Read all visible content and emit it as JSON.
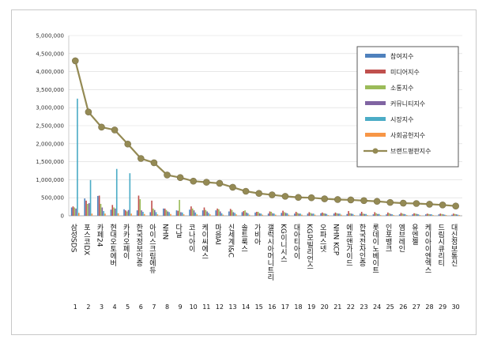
{
  "chart_data": {
    "type": "bar",
    "title": "",
    "xlabel": "",
    "ylabel": "",
    "ylim": [
      0,
      5000000
    ],
    "y_ticks": [
      "0",
      "500,000",
      "1,000,000",
      "1,500,000",
      "2,000,000",
      "2,500,000",
      "3,000,000",
      "3,500,000",
      "4,000,000",
      "4,500,000",
      "5,000,000"
    ],
    "grid": true,
    "legend_position": "top-right",
    "categories": [
      "삼성SDS",
      "포스코DX",
      "카페24",
      "현대오토에버",
      "카카오페이",
      "한국정보인증",
      "아이스크림에듀",
      "NHN",
      "다날",
      "코나아이",
      "케이씨에스",
      "마음AI",
      "신세계I&C",
      "솔트룩스",
      "가비아",
      "갤럭시아머니트리",
      "KG이니시스",
      "대아티아이",
      "KG모빌리언스",
      "오파스넷",
      "NHN KCP",
      "에프앤가이드",
      "한국전자인증",
      "롯데이노베이트",
      "인포뱅크",
      "엠브레인",
      "유엔젤",
      "케이아이엔엑스",
      "드림시큐리티",
      "대신정보통신"
    ],
    "category_numbers": [
      "1",
      "2",
      "3",
      "4",
      "5",
      "6",
      "7",
      "8",
      "9",
      "10",
      "11",
      "12",
      "13",
      "14",
      "15",
      "16",
      "17",
      "18",
      "19",
      "20",
      "21",
      "22",
      "23",
      "24",
      "25",
      "26",
      "27",
      "28",
      "29",
      "30"
    ],
    "series": [
      {
        "name": "참여지수",
        "type": "bar",
        "color": "#4F81BD",
        "values": [
          230000,
          480000,
          550000,
          170000,
          180000,
          150000,
          100000,
          200000,
          150000,
          170000,
          150000,
          150000,
          120000,
          100000,
          90000,
          60000,
          80000,
          60000,
          60000,
          70000,
          60000,
          50000,
          60000,
          40000,
          40000,
          40000,
          40000,
          40000,
          40000,
          30000
        ]
      },
      {
        "name": "미디어지수",
        "type": "bar",
        "color": "#C0504D",
        "values": [
          260000,
          420000,
          560000,
          300000,
          150000,
          560000,
          420000,
          200000,
          140000,
          260000,
          230000,
          200000,
          190000,
          130000,
          110000,
          120000,
          140000,
          110000,
          100000,
          90000,
          90000,
          130000,
          110000,
          100000,
          90000,
          80000,
          70000,
          60000,
          60000,
          60000
        ]
      },
      {
        "name": "소통지수",
        "type": "bar",
        "color": "#9BBB59",
        "values": [
          230000,
          330000,
          330000,
          230000,
          120000,
          460000,
          200000,
          160000,
          440000,
          200000,
          160000,
          180000,
          160000,
          150000,
          110000,
          110000,
          100000,
          80000,
          80000,
          70000,
          70000,
          70000,
          60000,
          70000,
          70000,
          60000,
          60000,
          50000,
          50000,
          50000
        ]
      },
      {
        "name": "커뮤니티지수",
        "type": "bar",
        "color": "#8064A2",
        "values": [
          200000,
          350000,
          230000,
          200000,
          160000,
          150000,
          160000,
          120000,
          100000,
          150000,
          120000,
          120000,
          100000,
          90000,
          70000,
          70000,
          80000,
          60000,
          60000,
          60000,
          60000,
          60000,
          50000,
          50000,
          50000,
          50000,
          50000,
          40000,
          40000,
          40000
        ]
      },
      {
        "name": "시장지수",
        "type": "bar",
        "color": "#4BACC6",
        "values": [
          3250000,
          990000,
          130000,
          1300000,
          1180000,
          110000,
          100000,
          100000,
          90000,
          90000,
          80000,
          70000,
          80000,
          70000,
          60000,
          60000,
          70000,
          60000,
          60000,
          50000,
          60000,
          50000,
          50000,
          50000,
          40000,
          40000,
          40000,
          40000,
          30000,
          30000
        ]
      },
      {
        "name": "사회공헌지수",
        "type": "bar",
        "color": "#F79646",
        "values": [
          80000,
          60000,
          60000,
          70000,
          60000,
          50000,
          40000,
          50000,
          40000,
          40000,
          40000,
          30000,
          40000,
          30000,
          30000,
          30000,
          30000,
          30000,
          30000,
          20000,
          30000,
          20000,
          20000,
          20000,
          20000,
          20000,
          20000,
          20000,
          20000,
          20000
        ]
      },
      {
        "name": "브랜드평판지수",
        "type": "line",
        "color": "#948A54",
        "values": [
          4300000,
          2880000,
          2460000,
          2380000,
          1990000,
          1590000,
          1470000,
          1130000,
          1060000,
          960000,
          930000,
          900000,
          790000,
          680000,
          620000,
          580000,
          540000,
          510000,
          500000,
          470000,
          450000,
          440000,
          420000,
          400000,
          370000,
          350000,
          340000,
          320000,
          300000,
          270000
        ]
      }
    ]
  }
}
